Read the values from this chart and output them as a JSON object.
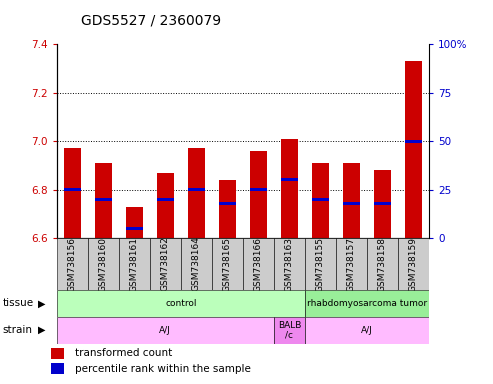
{
  "title": "GDS5527 / 2360079",
  "samples": [
    "GSM738156",
    "GSM738160",
    "GSM738161",
    "GSM738162",
    "GSM738164",
    "GSM738165",
    "GSM738166",
    "GSM738163",
    "GSM738155",
    "GSM738157",
    "GSM738158",
    "GSM738159"
  ],
  "transformed_count": [
    6.97,
    6.91,
    6.73,
    6.87,
    6.97,
    6.84,
    6.96,
    7.01,
    6.91,
    6.91,
    6.88,
    7.33
  ],
  "percentile_rank": [
    25,
    20,
    5,
    20,
    25,
    18,
    25,
    30,
    20,
    18,
    18,
    50
  ],
  "ylim": [
    6.6,
    7.4
  ],
  "y2lim": [
    0,
    100
  ],
  "yticks": [
    6.6,
    6.8,
    7.0,
    7.2,
    7.4
  ],
  "y2ticks": [
    0,
    25,
    50,
    75,
    100
  ],
  "bar_color": "#cc0000",
  "blue_color": "#0000cc",
  "tissue_groups": [
    {
      "label": "control",
      "start": 0,
      "end": 8,
      "color": "#bbffbb"
    },
    {
      "label": "rhabdomyosarcoma tumor",
      "start": 8,
      "end": 12,
      "color": "#99ee99"
    }
  ],
  "strain_groups": [
    {
      "label": "A/J",
      "start": 0,
      "end": 7,
      "color": "#ffbbff"
    },
    {
      "label": "BALB\n/c",
      "start": 7,
      "end": 8,
      "color": "#ee88ee"
    },
    {
      "label": "A/J",
      "start": 8,
      "end": 12,
      "color": "#ffbbff"
    }
  ],
  "legend_bar_color": "#cc0000",
  "legend_blue_color": "#0000cc",
  "bg_color": "#ffffff",
  "plot_bg": "#ffffff",
  "axis_label_color_left": "#cc0000",
  "axis_label_color_right": "#0000cc",
  "title_fontsize": 10,
  "tick_fontsize": 7.5,
  "sample_fontsize": 6.5
}
